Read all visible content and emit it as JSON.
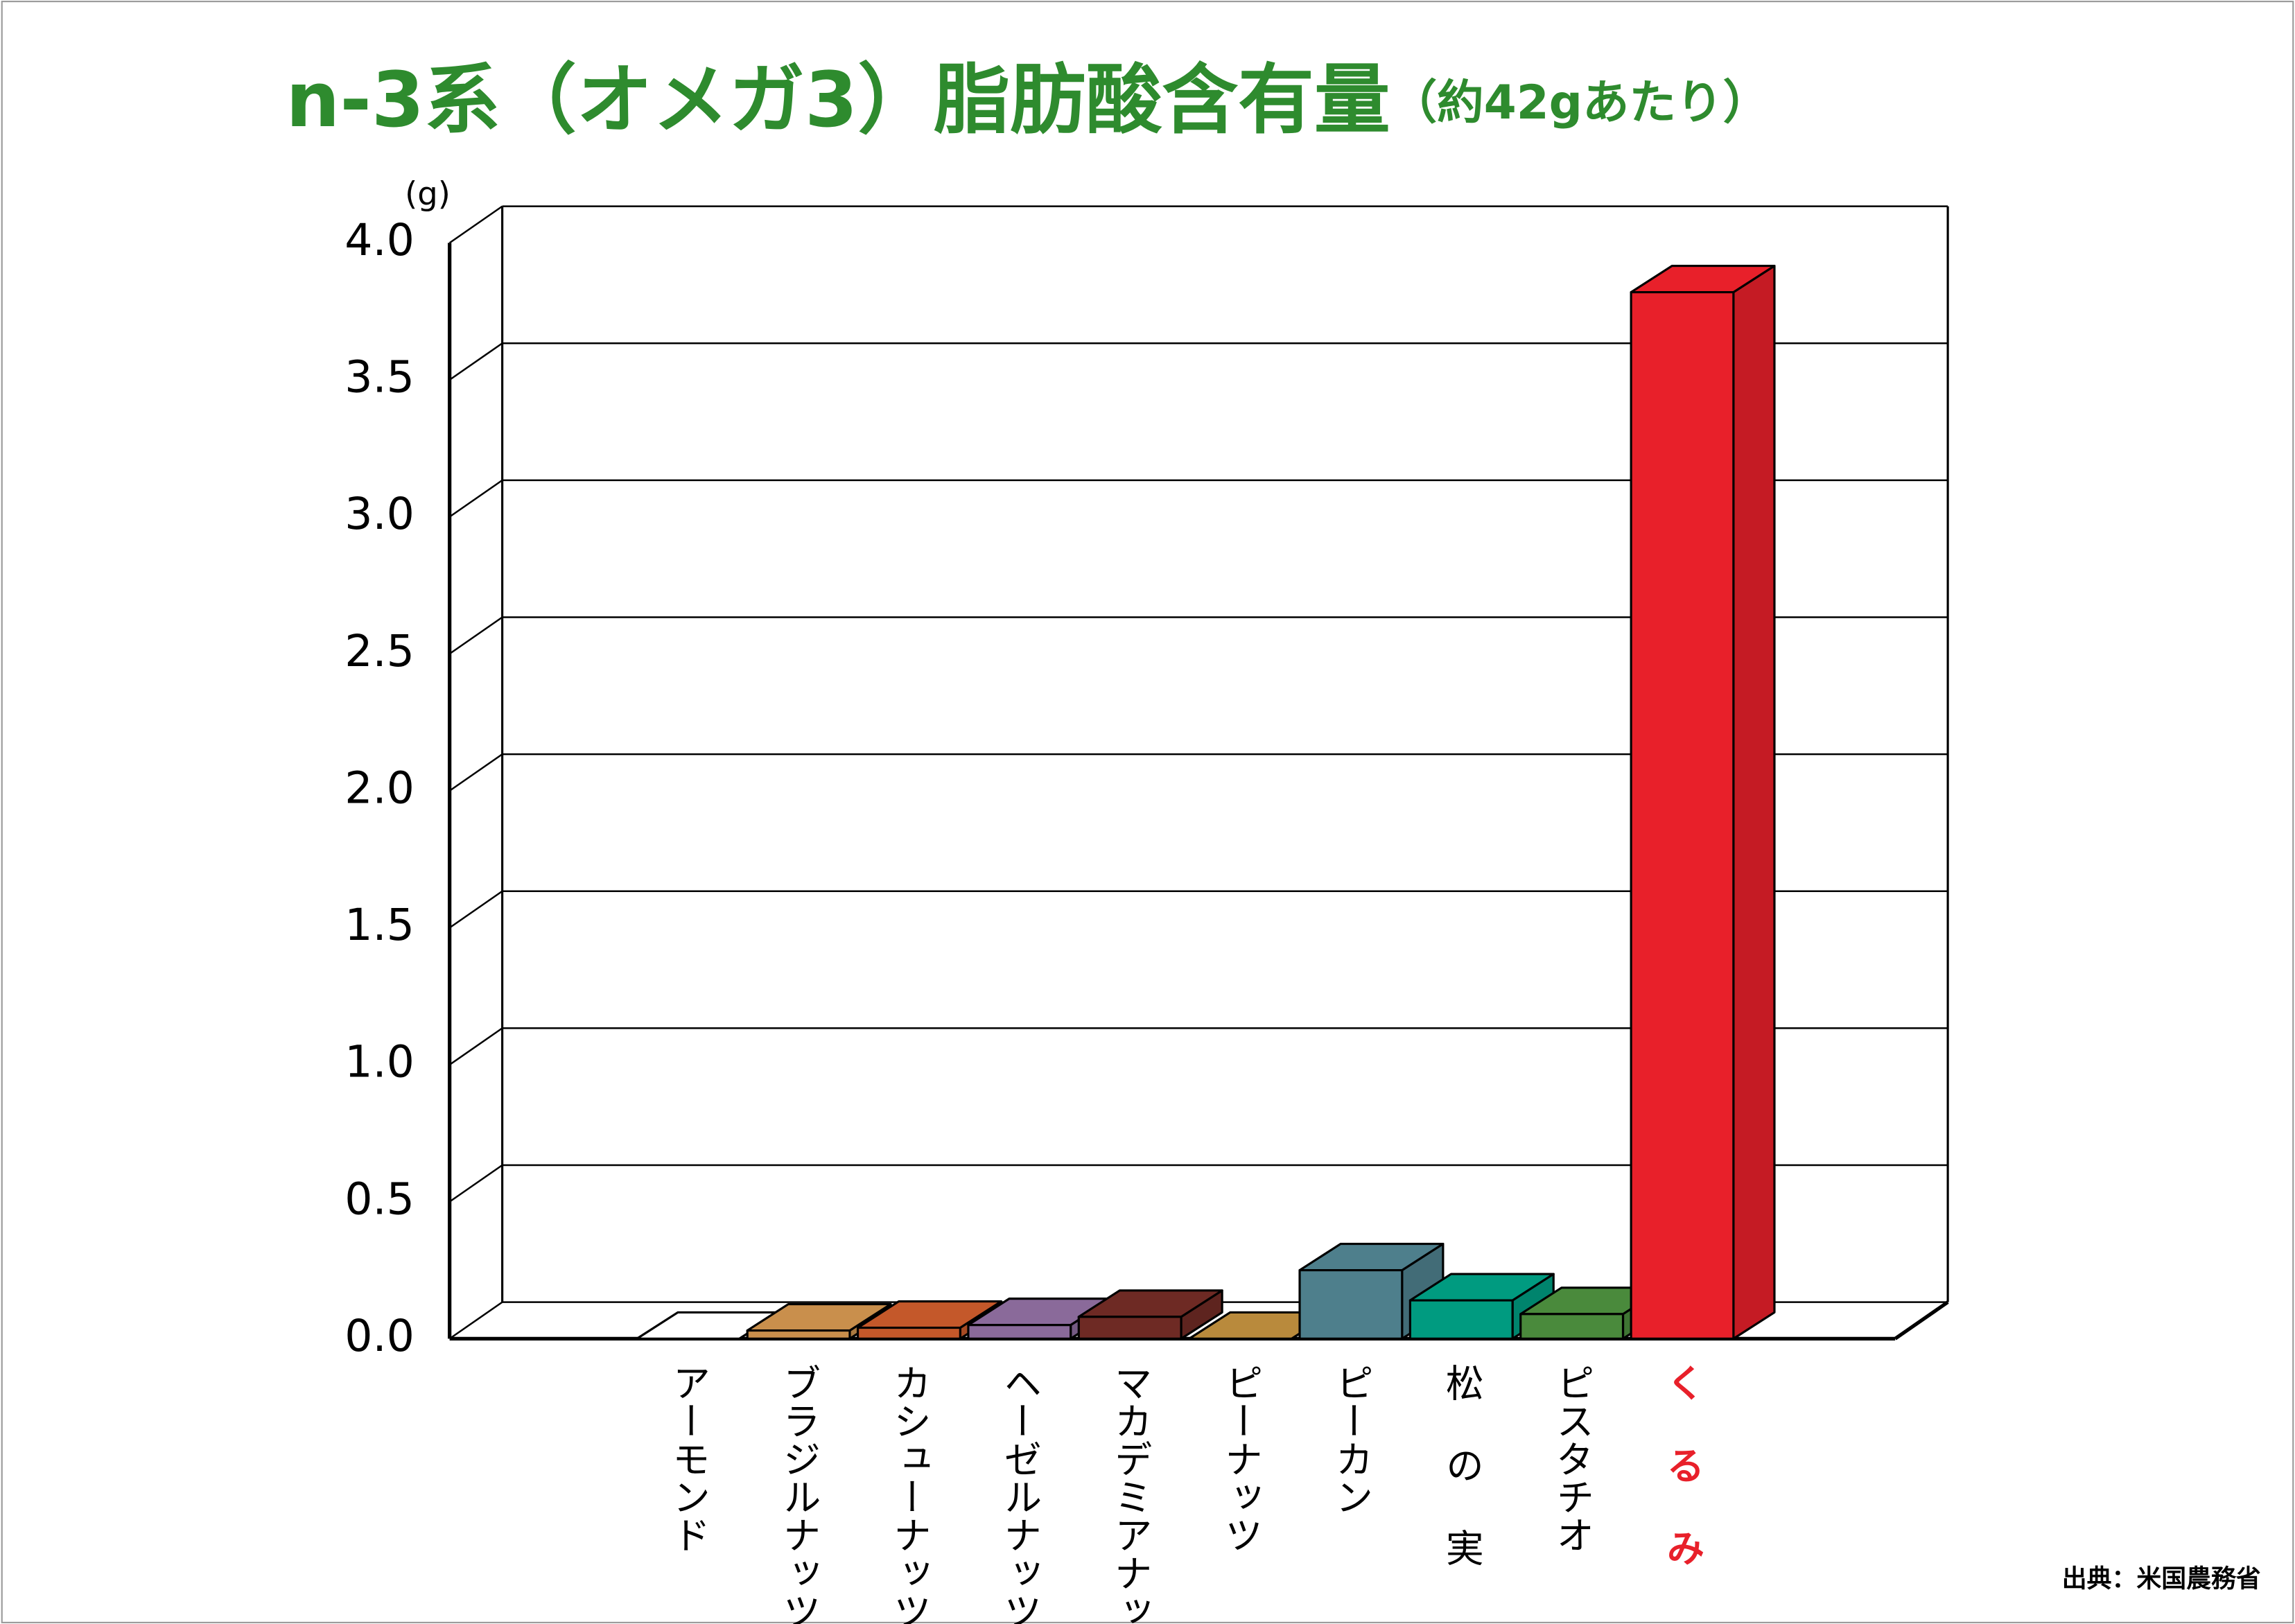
{
  "chart_data": {
    "type": "bar3d",
    "title": "n-3系（オメガ3）脂肪酸含有量",
    "subtitle": "（約42gあたり）",
    "y_label": "(g)",
    "source": "出典：米国農務省",
    "categories": [
      "アーモンド",
      "ブラジルナッツ",
      "カシューナッツ",
      "ヘーゼルナッツ",
      "マカデミアナッツ",
      "ピーナッツ",
      "ピーカン",
      "松 の 実",
      "ピスタチオ",
      "く る み"
    ],
    "values": [
      0,
      0.03,
      0.04,
      0.05,
      0.08,
      0,
      0.25,
      0.14,
      0.09,
      3.82
    ],
    "colors": [
      "#ffffff",
      "#c98f4c",
      "#c4582a",
      "#8a6a9a",
      "#6e2a24",
      "#b98a3c",
      "#4e7f8c",
      "#009b80",
      "#4a8a3c",
      "#e8202a"
    ],
    "label_colors": [
      "#000000",
      "#000000",
      "#000000",
      "#000000",
      "#000000",
      "#000000",
      "#000000",
      "#000000",
      "#000000",
      "#e8202a"
    ],
    "ylim": [
      0,
      4
    ],
    "yticks": [
      {
        "value": 0,
        "label": "0.0"
      },
      0.5,
      {
        "value": 1,
        "label": "1.0"
      },
      1.5,
      {
        "value": 2,
        "label": "2.0"
      },
      2.5,
      {
        "value": 3,
        "label": "3.0"
      },
      3.5,
      {
        "value": 4,
        "label": "4.0"
      }
    ],
    "grid": true,
    "title_color": "#2e8b2e"
  }
}
